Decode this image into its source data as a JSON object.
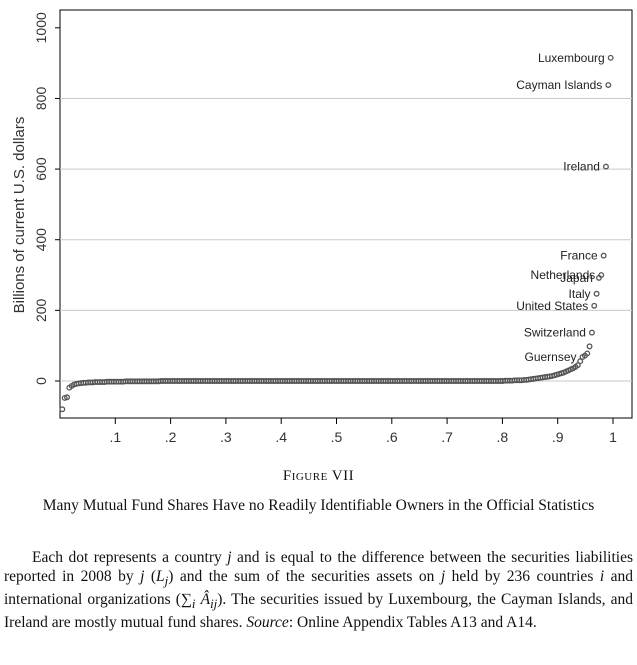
{
  "figure": {
    "label": "Figure VII",
    "title": "Many Mutual Fund Shares Have no Readily Identifiable Owners in the Official Statistics",
    "note_parts": {
      "p1": "Each dot represents a country ",
      "v_j1": "j",
      "p2": " and is equal to the difference between the securities liabilities reported in 2008 by ",
      "v_j2": "j",
      "p3": " (",
      "v_L": "L",
      "v_Lsub": "j",
      "p4": ") and the sum of the securities assets on ",
      "v_j3": "j",
      "p5": " held by 236 countries ",
      "v_i": "i",
      "p6": " and international organizations (∑",
      "v_isub": "i",
      "p7": " ",
      "v_A": "Â",
      "v_Asub": "ij",
      "p8": "). The securities issued by Luxembourg, the Cayman Islands, and Ireland are mostly mutual fund shares. ",
      "source_label": "Source",
      "p9": ": Online Appendix Tables A13 and A14."
    }
  },
  "chart_data": {
    "type": "scatter",
    "ylabel": "Billions of current U.S. dollars",
    "xlabel": "",
    "xlim": [
      0,
      1.0
    ],
    "ylim": [
      -100,
      1000
    ],
    "xticks": [
      0.1,
      0.2,
      0.3,
      0.4,
      0.5,
      0.6,
      0.7,
      0.8,
      0.9,
      1.0
    ],
    "xtick_labels": [
      ".1",
      ".2",
      ".3",
      ".4",
      ".5",
      ".6",
      ".7",
      ".8",
      ".9",
      "1"
    ],
    "yticks": [
      0,
      200,
      400,
      600,
      800,
      1000
    ],
    "ytick_labels": [
      "0",
      "200",
      "400",
      "600",
      "800",
      "1000"
    ],
    "grid": "horizontal",
    "labeled_points": [
      {
        "label": "Luxembourg",
        "x": 0.9958,
        "y": 915
      },
      {
        "label": "Cayman Islands",
        "x": 0.9915,
        "y": 838
      },
      {
        "label": "Ireland",
        "x": 0.9873,
        "y": 607
      },
      {
        "label": "France",
        "x": 0.9831,
        "y": 355
      },
      {
        "label": "Netherlands",
        "x": 0.9788,
        "y": 300
      },
      {
        "label": "Japan",
        "x": 0.9746,
        "y": 292
      },
      {
        "label": "Italy",
        "x": 0.9703,
        "y": 247
      },
      {
        "label": "United States",
        "x": 0.9661,
        "y": 213
      },
      {
        "label": "Switzerland",
        "x": 0.9619,
        "y": 137
      },
      {
        "label": "Guernsey",
        "x": 0.9449,
        "y": 68
      }
    ],
    "points": [
      [
        0.0042,
        -80
      ],
      [
        0.0085,
        -48
      ],
      [
        0.0127,
        -46
      ],
      [
        0.0169,
        -19
      ],
      [
        0.0212,
        -14
      ],
      [
        0.0254,
        -10
      ],
      [
        0.0297,
        -8
      ],
      [
        0.0339,
        -7
      ],
      [
        0.0381,
        -6
      ],
      [
        0.0424,
        -5
      ],
      [
        0.0466,
        -5
      ],
      [
        0.0508,
        -4
      ],
      [
        0.0551,
        -4
      ],
      [
        0.0593,
        -4
      ],
      [
        0.0636,
        -3
      ],
      [
        0.0678,
        -3
      ],
      [
        0.072,
        -3
      ],
      [
        0.0763,
        -3
      ],
      [
        0.0805,
        -3
      ],
      [
        0.0847,
        -2
      ],
      [
        0.089,
        -2
      ],
      [
        0.0932,
        -2
      ],
      [
        0.0975,
        -2
      ],
      [
        0.1017,
        -2
      ],
      [
        0.1059,
        -2
      ],
      [
        0.1102,
        -2
      ],
      [
        0.1144,
        -2
      ],
      [
        0.1186,
        -1
      ],
      [
        0.1229,
        -1
      ],
      [
        0.1271,
        -1
      ],
      [
        0.1314,
        -1
      ],
      [
        0.1356,
        -1
      ],
      [
        0.1398,
        -1
      ],
      [
        0.1441,
        -1
      ],
      [
        0.1483,
        -1
      ],
      [
        0.1525,
        -1
      ],
      [
        0.1568,
        -1
      ],
      [
        0.161,
        -1
      ],
      [
        0.1653,
        -1
      ],
      [
        0.1695,
        -1
      ],
      [
        0.1737,
        -1
      ],
      [
        0.178,
        -1
      ],
      [
        0.1822,
        0
      ],
      [
        0.1864,
        0
      ],
      [
        0.1907,
        0
      ],
      [
        0.1949,
        0
      ],
      [
        0.1992,
        0
      ],
      [
        0.2034,
        0
      ],
      [
        0.2076,
        0
      ],
      [
        0.2119,
        0
      ],
      [
        0.2161,
        0
      ],
      [
        0.2203,
        0
      ],
      [
        0.2246,
        0
      ],
      [
        0.2288,
        0
      ],
      [
        0.2331,
        0
      ],
      [
        0.2373,
        0
      ],
      [
        0.2415,
        0
      ],
      [
        0.2458,
        0
      ],
      [
        0.25,
        0
      ],
      [
        0.2542,
        0
      ],
      [
        0.2585,
        0
      ],
      [
        0.2627,
        0
      ],
      [
        0.2669,
        0
      ],
      [
        0.2712,
        0
      ],
      [
        0.2754,
        0
      ],
      [
        0.2797,
        0
      ],
      [
        0.2839,
        0
      ],
      [
        0.2881,
        0
      ],
      [
        0.2924,
        0
      ],
      [
        0.2966,
        0
      ],
      [
        0.3008,
        0
      ],
      [
        0.3051,
        0
      ],
      [
        0.3093,
        0
      ],
      [
        0.3136,
        0
      ],
      [
        0.3178,
        0
      ],
      [
        0.322,
        0
      ],
      [
        0.3263,
        0
      ],
      [
        0.3305,
        0
      ],
      [
        0.3347,
        0
      ],
      [
        0.339,
        0
      ],
      [
        0.3432,
        0
      ],
      [
        0.3475,
        0
      ],
      [
        0.3517,
        0
      ],
      [
        0.3559,
        0
      ],
      [
        0.3602,
        0
      ],
      [
        0.3644,
        0
      ],
      [
        0.3686,
        0
      ],
      [
        0.3729,
        0
      ],
      [
        0.3771,
        0
      ],
      [
        0.3814,
        0
      ],
      [
        0.3856,
        0
      ],
      [
        0.3898,
        0
      ],
      [
        0.3941,
        0
      ],
      [
        0.3983,
        0
      ],
      [
        0.4025,
        0
      ],
      [
        0.4068,
        0
      ],
      [
        0.411,
        0
      ],
      [
        0.4153,
        0
      ],
      [
        0.4195,
        0
      ],
      [
        0.4237,
        0
      ],
      [
        0.428,
        0
      ],
      [
        0.4322,
        0
      ],
      [
        0.4364,
        0
      ],
      [
        0.4407,
        0
      ],
      [
        0.4449,
        0
      ],
      [
        0.4492,
        0
      ],
      [
        0.4534,
        0
      ],
      [
        0.4576,
        0
      ],
      [
        0.4619,
        0
      ],
      [
        0.4661,
        0
      ],
      [
        0.4703,
        0
      ],
      [
        0.4746,
        0
      ],
      [
        0.4788,
        0
      ],
      [
        0.4831,
        0
      ],
      [
        0.4873,
        0
      ],
      [
        0.4915,
        0
      ],
      [
        0.4958,
        0
      ],
      [
        0.5,
        0
      ],
      [
        0.5042,
        0
      ],
      [
        0.5085,
        0
      ],
      [
        0.5127,
        0
      ],
      [
        0.5169,
        0
      ],
      [
        0.5212,
        0
      ],
      [
        0.5254,
        0
      ],
      [
        0.5297,
        0
      ],
      [
        0.5339,
        0
      ],
      [
        0.5381,
        0
      ],
      [
        0.5424,
        0
      ],
      [
        0.5466,
        0
      ],
      [
        0.5508,
        0
      ],
      [
        0.5551,
        0
      ],
      [
        0.5593,
        0
      ],
      [
        0.5636,
        0
      ],
      [
        0.5678,
        0
      ],
      [
        0.572,
        0
      ],
      [
        0.5763,
        0
      ],
      [
        0.5805,
        0
      ],
      [
        0.5847,
        0
      ],
      [
        0.589,
        0
      ],
      [
        0.5932,
        0
      ],
      [
        0.5975,
        0
      ],
      [
        0.6017,
        0
      ],
      [
        0.6059,
        0
      ],
      [
        0.6102,
        0
      ],
      [
        0.6144,
        0
      ],
      [
        0.6186,
        0
      ],
      [
        0.6229,
        0
      ],
      [
        0.6271,
        0
      ],
      [
        0.6314,
        0
      ],
      [
        0.6356,
        0
      ],
      [
        0.6398,
        0
      ],
      [
        0.6441,
        0
      ],
      [
        0.6483,
        0
      ],
      [
        0.6525,
        0
      ],
      [
        0.6568,
        0
      ],
      [
        0.661,
        0
      ],
      [
        0.6653,
        0
      ],
      [
        0.6695,
        0
      ],
      [
        0.6737,
        0
      ],
      [
        0.678,
        0
      ],
      [
        0.6822,
        0
      ],
      [
        0.6864,
        0
      ],
      [
        0.6907,
        0
      ],
      [
        0.6949,
        0
      ],
      [
        0.6992,
        0
      ],
      [
        0.7034,
        0
      ],
      [
        0.7076,
        0
      ],
      [
        0.7119,
        0
      ],
      [
        0.7161,
        0
      ],
      [
        0.7203,
        0
      ],
      [
        0.7246,
        0
      ],
      [
        0.7288,
        0
      ],
      [
        0.7331,
        0
      ],
      [
        0.7373,
        0
      ],
      [
        0.7415,
        0
      ],
      [
        0.7458,
        0
      ],
      [
        0.75,
        0
      ],
      [
        0.7542,
        0
      ],
      [
        0.7585,
        0
      ],
      [
        0.7627,
        0
      ],
      [
        0.7669,
        0
      ],
      [
        0.7712,
        0
      ],
      [
        0.7754,
        0
      ],
      [
        0.7797,
        0
      ],
      [
        0.7839,
        0
      ],
      [
        0.7881,
        0
      ],
      [
        0.7924,
        0
      ],
      [
        0.7966,
        0
      ],
      [
        0.8008,
        0
      ],
      [
        0.8051,
        1
      ],
      [
        0.8093,
        1
      ],
      [
        0.8136,
        1
      ],
      [
        0.8178,
        1
      ],
      [
        0.822,
        2
      ],
      [
        0.8263,
        2
      ],
      [
        0.8305,
        2
      ],
      [
        0.8347,
        2
      ],
      [
        0.839,
        3
      ],
      [
        0.8432,
        3
      ],
      [
        0.8475,
        4
      ],
      [
        0.8517,
        5
      ],
      [
        0.8559,
        6
      ],
      [
        0.8602,
        7
      ],
      [
        0.8644,
        8
      ],
      [
        0.8686,
        9
      ],
      [
        0.8729,
        10
      ],
      [
        0.8771,
        11
      ],
      [
        0.8814,
        12
      ],
      [
        0.8856,
        13
      ],
      [
        0.8898,
        14
      ],
      [
        0.8941,
        16
      ],
      [
        0.8983,
        18
      ],
      [
        0.9025,
        20
      ],
      [
        0.9068,
        22
      ],
      [
        0.911,
        24
      ],
      [
        0.9153,
        27
      ],
      [
        0.9195,
        30
      ],
      [
        0.9237,
        33
      ],
      [
        0.928,
        36
      ],
      [
        0.9322,
        40
      ],
      [
        0.9364,
        45
      ],
      [
        0.9407,
        56
      ],
      [
        0.9449,
        68
      ],
      [
        0.9492,
        72
      ],
      [
        0.9534,
        78
      ],
      [
        0.9576,
        98
      ],
      [
        0.9619,
        137
      ],
      [
        0.9661,
        213
      ],
      [
        0.9703,
        247
      ],
      [
        0.9746,
        292
      ],
      [
        0.9788,
        300
      ],
      [
        0.9831,
        355
      ],
      [
        0.9873,
        607
      ],
      [
        0.9915,
        838
      ],
      [
        0.9958,
        915
      ]
    ]
  }
}
